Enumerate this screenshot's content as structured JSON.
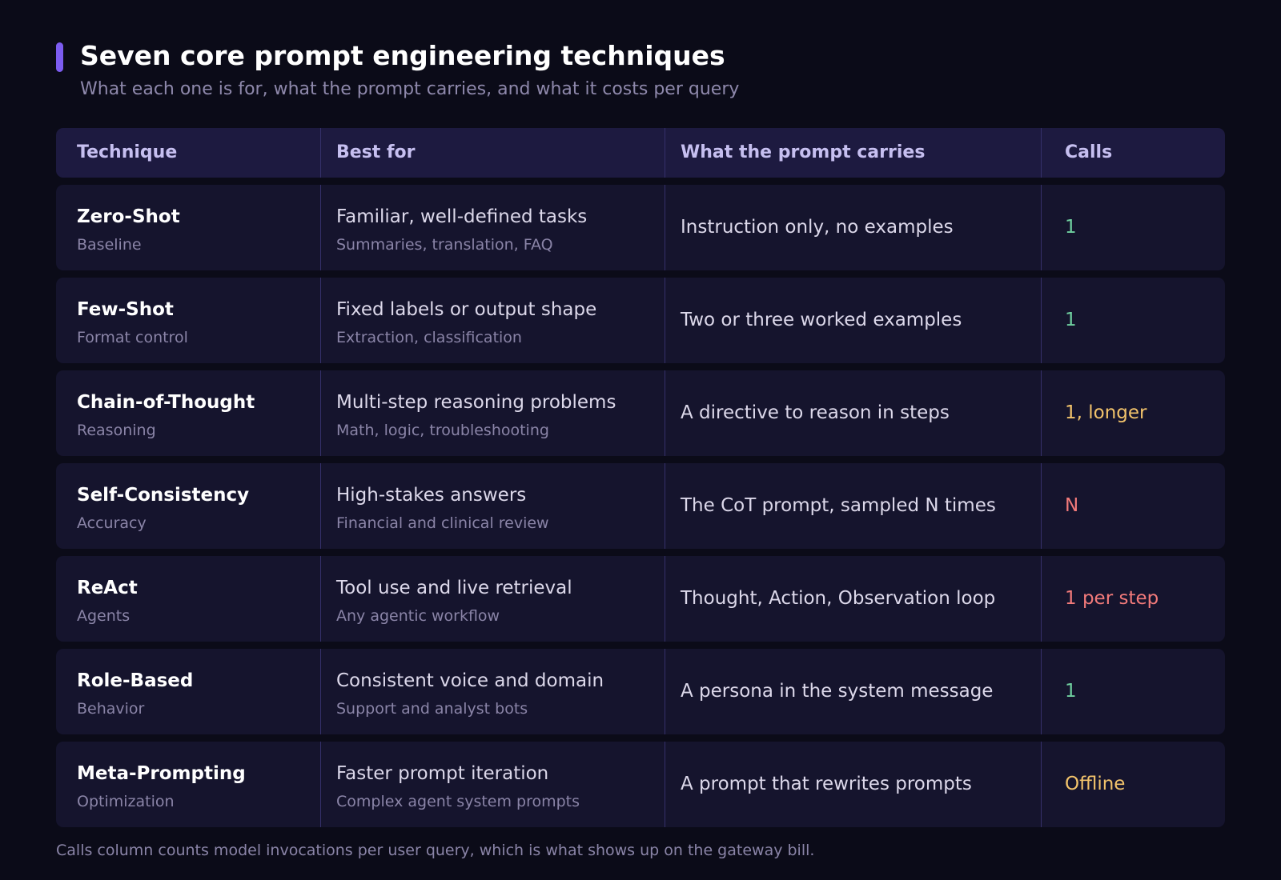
{
  "header": {
    "title": "Seven core prompt engineering techniques",
    "subtitle": "What each one is for, what the prompt carries, and what it costs per query",
    "accent_color": "#7c5cf0"
  },
  "table": {
    "columns": [
      "Technique",
      "Best for",
      "What the prompt carries",
      "Calls"
    ],
    "rows": [
      {
        "technique": "Zero-Shot",
        "technique_sub": "Baseline",
        "best_for": "Familiar, well-defined tasks",
        "best_for_sub": "Summaries, translation, FAQ",
        "carries": "Instruction only, no examples",
        "calls": "1",
        "calls_color": "#6fcf9f"
      },
      {
        "technique": "Few-Shot",
        "technique_sub": "Format control",
        "best_for": "Fixed labels or output shape",
        "best_for_sub": "Extraction, classification",
        "carries": "Two or three worked examples",
        "calls": "1",
        "calls_color": "#6fcf9f"
      },
      {
        "technique": "Chain-of-Thought",
        "technique_sub": "Reasoning",
        "best_for": "Multi-step reasoning problems",
        "best_for_sub": "Math, logic, troubleshooting",
        "carries": "A directive to reason in steps",
        "calls": "1, longer",
        "calls_color": "#f2c36b"
      },
      {
        "technique": "Self-Consistency",
        "technique_sub": "Accuracy",
        "best_for": "High-stakes answers",
        "best_for_sub": "Financial and clinical review",
        "carries": "The CoT prompt, sampled N times",
        "calls": "N",
        "calls_color": "#f27a7a"
      },
      {
        "technique": "ReAct",
        "technique_sub": "Agents",
        "best_for": "Tool use and live retrieval",
        "best_for_sub": "Any agentic workflow",
        "carries": "Thought, Action, Observation loop",
        "calls": "1 per step",
        "calls_color": "#f27a7a"
      },
      {
        "technique": "Role-Based",
        "technique_sub": "Behavior",
        "best_for": "Consistent voice and domain",
        "best_for_sub": "Support and analyst bots",
        "carries": "A persona in the system message",
        "calls": "1",
        "calls_color": "#6fcf9f"
      },
      {
        "technique": "Meta-Prompting",
        "technique_sub": "Optimization",
        "best_for": "Faster prompt iteration",
        "best_for_sub": "Complex agent system prompts",
        "carries": "A prompt that rewrites prompts",
        "calls": "Offline",
        "calls_color": "#f2c36b"
      }
    ]
  },
  "footnote": "Calls column counts model invocations per user query, which is what shows up on the gateway bill."
}
